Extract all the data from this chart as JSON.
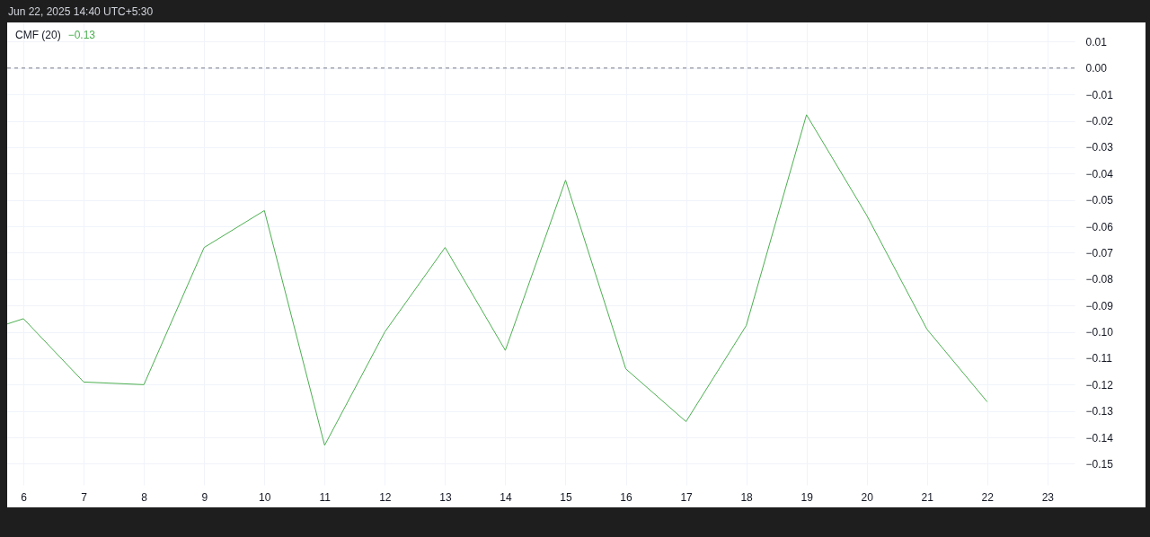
{
  "chart_data": {
    "type": "line",
    "title": "CMF (20)",
    "annotations": [
      "−0.13",
      "Jun 22, 2025 14:40 UTC+5:30"
    ],
    "x": [
      5.73,
      6,
      7,
      8,
      9,
      10,
      11,
      12,
      13,
      14,
      15,
      16,
      17,
      18,
      19,
      20,
      21,
      22
    ],
    "series": [
      {
        "color": "#4caf50",
        "values": [
          -0.097,
          -0.095,
          -0.119,
          -0.12,
          -0.068,
          -0.054,
          -0.143,
          -0.1,
          -0.068,
          -0.107,
          -0.0425,
          -0.114,
          -0.134,
          -0.0976,
          -0.0177,
          -0.0558,
          -0.099,
          -0.1265
        ]
      }
    ],
    "xlim": [
      5.73,
      23.45
    ],
    "xticks": [
      6,
      7,
      8,
      9,
      10,
      11,
      12,
      13,
      14,
      15,
      16,
      17,
      18,
      19,
      20,
      21,
      22,
      23
    ],
    "ylim": [
      -0.158,
      0.0173
    ],
    "yticks": [
      {
        "value": 0.01,
        "label": "0.01"
      },
      {
        "value": 0,
        "label": "0.00"
      },
      {
        "value": -0.01,
        "label": "−0.01"
      },
      {
        "value": -0.02,
        "label": "−0.02"
      },
      {
        "value": -0.03,
        "label": "−0.03"
      },
      {
        "value": -0.04,
        "label": "−0.04"
      },
      {
        "value": -0.05,
        "label": "−0.05"
      },
      {
        "value": -0.06,
        "label": "−0.06"
      },
      {
        "value": -0.07,
        "label": "−0.07"
      },
      {
        "value": -0.08,
        "label": "−0.08"
      },
      {
        "value": -0.09,
        "label": "−0.09"
      },
      {
        "value": -0.1,
        "label": "−0.10"
      },
      {
        "value": -0.11,
        "label": "−0.11"
      },
      {
        "value": -0.12,
        "label": "−0.12"
      },
      {
        "value": -0.13,
        "label": "−0.13"
      },
      {
        "value": -0.14,
        "label": "−0.14"
      },
      {
        "value": -0.15,
        "label": "−0.15"
      }
    ],
    "ref_lines": [
      {
        "axis": "y",
        "value": 0,
        "color": "#787b86",
        "line_style": "dashed"
      }
    ],
    "grid": true,
    "marker": "none",
    "line_style": "solid"
  }
}
